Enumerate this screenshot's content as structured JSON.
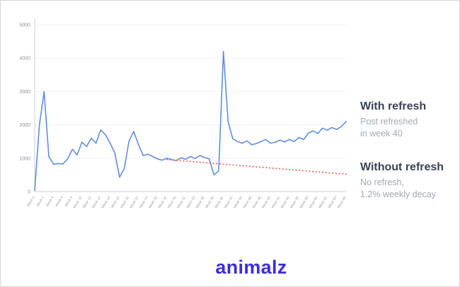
{
  "chart_data": {
    "type": "line",
    "title": "",
    "xlabel": "Week",
    "ylabel": "",
    "ylim": [
      0,
      5000
    ],
    "yticks": [
      0,
      1000,
      2000,
      3000,
      4000,
      5000
    ],
    "x_min": 0,
    "x_max": 66,
    "grid": true,
    "legend_position": "none",
    "series": [
      {
        "name": "With refresh",
        "color": "#5f8fd9",
        "values": [
          30,
          2000,
          3000,
          1050,
          820,
          840,
          830,
          980,
          1270,
          1100,
          1480,
          1350,
          1600,
          1450,
          1850,
          1700,
          1450,
          1150,
          430,
          700,
          1520,
          1800,
          1400,
          1080,
          1120,
          1050,
          980,
          940,
          1000,
          960,
          930,
          1010,
          970,
          1050,
          990,
          1080,
          1020,
          980,
          500,
          620,
          4200,
          2100,
          1580,
          1500,
          1450,
          1520,
          1400,
          1440,
          1500,
          1560,
          1450,
          1480,
          1540,
          1490,
          1560,
          1500,
          1620,
          1560,
          1750,
          1820,
          1740,
          1900,
          1840,
          1920,
          1860,
          1950,
          2100
        ]
      }
    ],
    "decay_line": {
      "name": "Without refresh",
      "color": "#e4645c",
      "style": "dotted",
      "start_week": 28,
      "start_value": 960,
      "end_week": 66,
      "end_value": 520,
      "weekly_decay_pct": 1.2
    },
    "xticks": [
      {
        "week": 0,
        "label": "Week 0"
      },
      {
        "week": 2,
        "label": "Week 2"
      },
      {
        "week": 4,
        "label": "Week 4"
      },
      {
        "week": 6,
        "label": "Week 6"
      },
      {
        "week": 8,
        "label": "Week 8"
      },
      {
        "week": 10,
        "label": "Week 10"
      },
      {
        "week": 12,
        "label": "Week 12"
      },
      {
        "week": 14,
        "label": "Week 14"
      },
      {
        "week": 16,
        "label": "Week 16"
      },
      {
        "week": 18,
        "label": "Week 18"
      },
      {
        "week": 20,
        "label": "Week 20"
      },
      {
        "week": 22,
        "label": "Week 22"
      },
      {
        "week": 24,
        "label": "Week 24"
      },
      {
        "week": 26,
        "label": "Week 26"
      },
      {
        "week": 28,
        "label": "Week 28"
      },
      {
        "week": 30,
        "label": "Week 30"
      },
      {
        "week": 32,
        "label": "Week 32"
      },
      {
        "week": 34,
        "label": "Week 34"
      },
      {
        "week": 36,
        "label": "Week 36"
      },
      {
        "week": 38,
        "label": "Week 38"
      },
      {
        "week": 40,
        "label": "Week 40"
      },
      {
        "week": 42,
        "label": "Week 42"
      },
      {
        "week": 44,
        "label": "Week 44"
      },
      {
        "week": 46,
        "label": "Week 46"
      },
      {
        "week": 48,
        "label": "Week 48"
      },
      {
        "week": 50,
        "label": "Week 50"
      },
      {
        "week": 52,
        "label": "Week 52"
      },
      {
        "week": 54,
        "label": "Week 54"
      },
      {
        "week": 56,
        "label": "Week 56"
      },
      {
        "week": 58,
        "label": "Week 58"
      },
      {
        "week": 60,
        "label": "Week 60"
      },
      {
        "week": 62,
        "label": "Week 62"
      },
      {
        "week": 64,
        "label": "Week 64"
      },
      {
        "week": 66,
        "label": "Week 66"
      }
    ]
  },
  "annotations": {
    "with_refresh": {
      "title": "With refresh",
      "line1": "Post refreshed",
      "line2": "in week 40"
    },
    "without_refresh": {
      "title": "Without refresh",
      "line1": "No refresh,",
      "line2": "1.2% weekly decay"
    }
  },
  "logo": {
    "text": "animalz",
    "color": "#3c2dd8"
  },
  "colors": {
    "line_with_refresh": "#5f8fd9",
    "line_without_refresh": "#e4645c",
    "axis": "#c9cdd3",
    "tick_label": "#9aa0a8",
    "annotation_title": "#3b4252",
    "annotation_sub": "#a4a9b0"
  }
}
